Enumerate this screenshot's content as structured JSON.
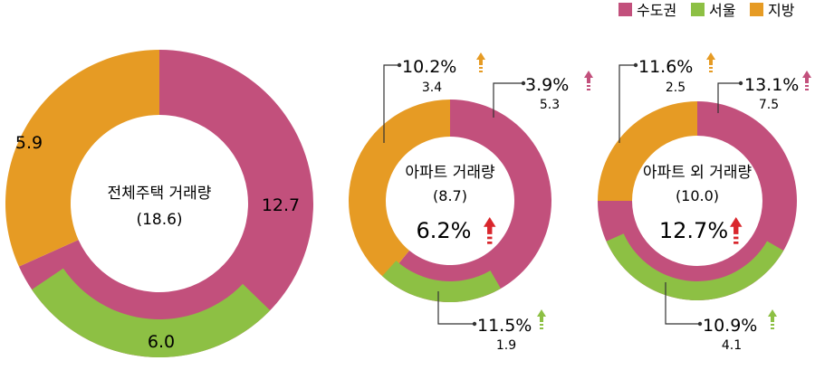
{
  "legend": [
    {
      "label": "수도권",
      "color": "#C2507C"
    },
    {
      "label": "서울",
      "color": "#8DC044"
    },
    {
      "label": "지방",
      "color": "#E69B24"
    }
  ],
  "colors": {
    "up_arrow_total": "#D9262C"
  },
  "chart_data": [
    {
      "type": "pie",
      "title": "전체주택 거래량",
      "total_label": "(18.6)",
      "slices": [
        {
          "name": "수도권",
          "value": 12.7,
          "label": "12.7"
        },
        {
          "name": "지방",
          "value": 5.9,
          "label": "5.9"
        }
      ],
      "inner_slices": [
        {
          "name": "서울",
          "value": 6.0,
          "label": "6.0"
        }
      ]
    },
    {
      "type": "pie",
      "title": "아파트 거래량",
      "total_label": "(8.7)",
      "change": "6.2%",
      "slices": [
        {
          "name": "수도권",
          "value": 5.3,
          "change": "3.9%",
          "value_label": "5.3"
        },
        {
          "name": "지방",
          "value": 3.4,
          "change": "10.2%",
          "value_label": "3.4"
        }
      ],
      "inner_slices": [
        {
          "name": "서울",
          "value": 1.9,
          "change": "11.5%",
          "value_label": "1.9"
        }
      ]
    },
    {
      "type": "pie",
      "title": "아파트 외 거래량",
      "total_label": "(10.0)",
      "change": "12.7%",
      "slices": [
        {
          "name": "수도권",
          "value": 7.5,
          "change": "13.1%",
          "value_label": "7.5"
        },
        {
          "name": "지방",
          "value": 2.5,
          "change": "11.6%",
          "value_label": "2.5"
        }
      ],
      "inner_slices": [
        {
          "name": "서울",
          "value": 4.1,
          "change": "10.9%",
          "value_label": "4.1"
        }
      ]
    }
  ]
}
